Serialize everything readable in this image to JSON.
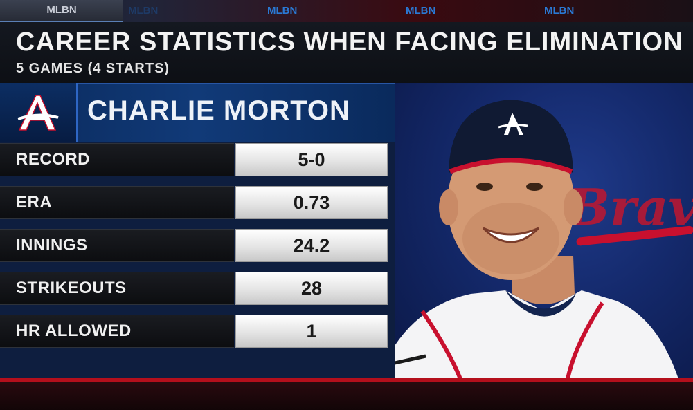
{
  "network": {
    "tabs": [
      "MLBN",
      "MLBN",
      "MLBN",
      "MLBN",
      "MLBN"
    ]
  },
  "header": {
    "title": "CAREER STATISTICS WHEN FACING ELIMINATION",
    "subtitle": "5 GAMES (4 STARTS)"
  },
  "player": {
    "name": "CHARLIE MORTON",
    "team_logo": "A",
    "photo_cap_logo": "A",
    "backdrop_script": "Braves"
  },
  "stats": [
    {
      "label": "RECORD",
      "value": "5-0"
    },
    {
      "label": "ERA",
      "value": "0.73"
    },
    {
      "label": "INNINGS",
      "value": "24.2"
    },
    {
      "label": "STRIKEOUTS",
      "value": "28"
    },
    {
      "label": "HR ALLOWED",
      "value": "1"
    }
  ],
  "colors": {
    "accent_red": "#b40f1c",
    "navy": "#0e1e3f",
    "brand_blue": "#2a79d4"
  }
}
